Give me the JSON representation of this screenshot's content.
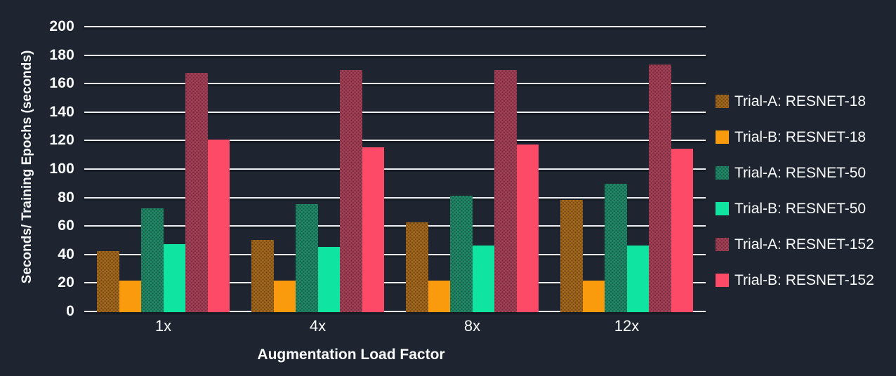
{
  "chart_data": {
    "type": "bar",
    "title": "",
    "categories": [
      "1x",
      "4x",
      "8x",
      "12x"
    ],
    "series": [
      {
        "name": "Trial-A: RESNET-18",
        "color": "#a5681c",
        "pattern": "dots",
        "values": [
          42,
          50,
          62,
          78
        ]
      },
      {
        "name": "Trial-B: RESNET-18",
        "color": "#f99b0c",
        "pattern": "solid",
        "values": [
          21,
          21,
          21,
          21
        ]
      },
      {
        "name": "Trial-A: RESNET-50",
        "color": "#1f8a69",
        "pattern": "dots",
        "values": [
          72,
          75,
          81,
          89
        ]
      },
      {
        "name": "Trial-B: RESNET-50",
        "color": "#0fe5a1",
        "pattern": "solid",
        "values": [
          47,
          45,
          46,
          46
        ]
      },
      {
        "name": "Trial-A: RESNET-152",
        "color": "#a63f58",
        "pattern": "dots",
        "values": [
          167,
          169,
          169,
          173
        ]
      },
      {
        "name": "Trial-B: RESNET-152",
        "color": "#fc4a67",
        "pattern": "solid",
        "values": [
          120,
          115,
          117,
          114
        ]
      }
    ],
    "xlabel": "Augmentation Load Factor",
    "ylabel": "Seconds/ Training Epochs (seconds)",
    "ylim": [
      0,
      200
    ],
    "ytick_step": 20,
    "yticks": [
      0,
      20,
      40,
      60,
      80,
      100,
      120,
      140,
      160,
      180,
      200
    ],
    "grid": true,
    "legend_position": "right",
    "colors": {
      "background": "#1e2530",
      "gridline": "#edeff3",
      "text": "#fafbfc"
    }
  }
}
